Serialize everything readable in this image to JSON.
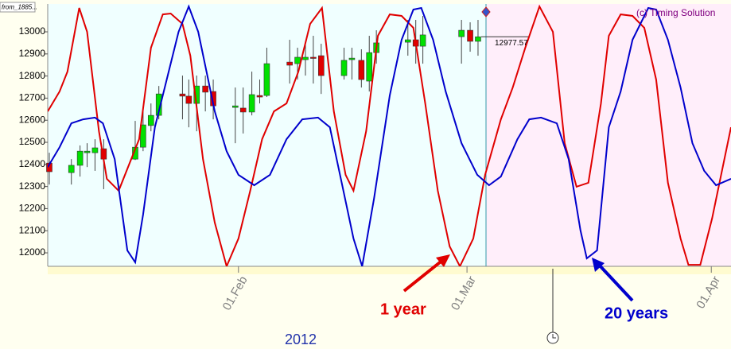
{
  "chart_data": {
    "type": "candlestick",
    "source_tag": "from_1885...",
    "copyright": "(c) Timing Solution",
    "x_label": "2012",
    "last_price_label": "12977.57",
    "xlim": [
      6.8,
      93.5
    ],
    "ylim": [
      11939,
      13126
    ],
    "xticks": [
      {
        "value": 31,
        "label": "01.Feb"
      },
      {
        "value": 60,
        "label": "01.Mar"
      },
      {
        "value": 91,
        "label": "01.Apr"
      }
    ],
    "yticks": [
      12000,
      12100,
      12200,
      12300,
      12400,
      12500,
      12600,
      12700,
      12800,
      12900,
      13000
    ],
    "candles": {
      "up_color": "#00e000",
      "down_color": "#e00000",
      "x": [
        7.0,
        9.8,
        10.9,
        11.8,
        12.8,
        13.9,
        17.9,
        18.9,
        19.9,
        20.9,
        23.9,
        24.7,
        25.7,
        26.8,
        27.8,
        30.6,
        31.6,
        32.7,
        33.7,
        34.6,
        37.5,
        38.5,
        39.5,
        40.5,
        41.5,
        44.4,
        45.4,
        46.6,
        47.6,
        48.5,
        52.5,
        53.5,
        54.4,
        59.3,
        60.4,
        61.4
      ],
      "open": [
        12406,
        12363,
        12396,
        12453,
        12453,
        12471,
        12424,
        12478,
        12576,
        12622,
        12719,
        12709,
        12676,
        12755,
        12730,
        12658,
        12655,
        12637,
        12712,
        12712,
        12863,
        12856,
        12874,
        12885,
        12892,
        12802,
        12874,
        12871,
        12777,
        12906,
        12953,
        12964,
        12935,
        12978,
        13007,
        12957
      ],
      "high": [
        12453,
        12424,
        12486,
        12496,
        12514,
        12514,
        12597,
        12640,
        12676,
        12755,
        12802,
        12784,
        12802,
        12802,
        12784,
        12748,
        12748,
        12820,
        12784,
        12928,
        12964,
        12928,
        12946,
        12982,
        12946,
        12928,
        12928,
        12921,
        12982,
        13007,
        13054,
        13054,
        13072,
        13054,
        13043,
        13054
      ],
      "low": [
        12309,
        12309,
        12345,
        12388,
        12371,
        12288,
        12420,
        12460,
        12550,
        12604,
        12604,
        12568,
        12550,
        12640,
        12604,
        12496,
        12540,
        12622,
        12676,
        12705,
        12766,
        12784,
        12802,
        12766,
        12719,
        12784,
        12784,
        12748,
        12730,
        12856,
        12892,
        12856,
        12856,
        12856,
        12910,
        12892
      ],
      "close": [
        12367,
        12396,
        12460,
        12460,
        12475,
        12424,
        12478,
        12579,
        12622,
        12719,
        12709,
        12676,
        12755,
        12727,
        12665,
        12665,
        12637,
        12716,
        12705,
        12856,
        12849,
        12885,
        12885,
        12881,
        12802,
        12871,
        12881,
        12784,
        12906,
        12950,
        12964,
        12935,
        12986,
        13007,
        12957,
        12977.57
      ]
    },
    "series": [
      {
        "name": "1 year",
        "color": "#e00000",
        "x": [
          6.8,
          8.3,
          9.3,
          10.8,
          11.8,
          13.3,
          14.3,
          15.8,
          18.4,
          19.9,
          21.4,
          22.4,
          23.9,
          24.9,
          26.5,
          28.0,
          29.5,
          31.0,
          32.5,
          34.0,
          35.5,
          37.1,
          38.6,
          40.1,
          41.6,
          43.1,
          44.6,
          45.6,
          47.2,
          48.7,
          50.2,
          51.7,
          53.2,
          54.7,
          56.3,
          57.8,
          59.1,
          60.8,
          62.3,
          64.3,
          65.8,
          67.4,
          69.2,
          70.9,
          72.4,
          73.9,
          75.4,
          77.0,
          78.0,
          79.5,
          81.0,
          82.5,
          84.0,
          85.5,
          87.1,
          88.1,
          89.6,
          91.1,
          93.5
        ],
        "values": [
          12640,
          12730,
          12820,
          13108,
          13000,
          12550,
          12335,
          12281,
          12514,
          12928,
          13079,
          13083,
          13036,
          12892,
          12424,
          12137,
          11939,
          12065,
          12281,
          12514,
          12640,
          12676,
          12820,
          13036,
          13108,
          12640,
          12353,
          12281,
          12550,
          12982,
          13079,
          13072,
          13018,
          12676,
          12281,
          12029,
          11939,
          12065,
          12353,
          12604,
          12748,
          12928,
          13115,
          13000,
          12496,
          12299,
          12317,
          12676,
          12982,
          13079,
          13072,
          13018,
          12784,
          12317,
          12065,
          11946,
          11946,
          12155,
          12568
        ]
      },
      {
        "name": "20 years",
        "color": "#0000cc",
        "x": [
          6.8,
          8.3,
          9.8,
          11.3,
          12.8,
          13.8,
          15.3,
          16.9,
          17.9,
          18.9,
          20.4,
          21.9,
          23.4,
          24.7,
          25.9,
          28.0,
          29.5,
          31.0,
          33.0,
          35.0,
          37.1,
          39.1,
          41.1,
          42.6,
          44.1,
          45.6,
          46.7,
          48.2,
          50.2,
          51.7,
          53.2,
          54.2,
          55.7,
          57.3,
          59.3,
          61.3,
          62.8,
          64.3,
          66.4,
          67.9,
          69.4,
          71.4,
          72.9,
          74.4,
          75.2,
          76.5,
          78.0,
          79.5,
          81.0,
          83.0,
          84.0,
          85.5,
          87.1,
          88.6,
          90.1,
          91.6,
          93.5
        ],
        "values": [
          12388,
          12478,
          12586,
          12604,
          12612,
          12586,
          12424,
          12011,
          11957,
          12173,
          12568,
          12784,
          13000,
          13115,
          13000,
          12640,
          12460,
          12353,
          12306,
          12353,
          12514,
          12604,
          12612,
          12568,
          12317,
          12065,
          11939,
          12245,
          12712,
          12964,
          13101,
          13108,
          12964,
          12730,
          12496,
          12353,
          12306,
          12345,
          12514,
          12604,
          12612,
          12586,
          12424,
          12101,
          11975,
          12011,
          12568,
          12730,
          12964,
          13108,
          13101,
          12964,
          12748,
          12496,
          12371,
          12306,
          12335
        ]
      }
    ]
  }
}
